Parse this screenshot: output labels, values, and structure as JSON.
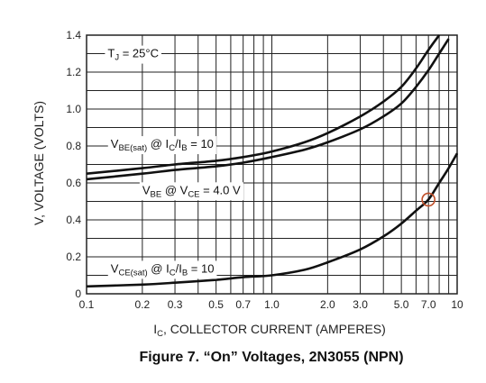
{
  "chart_data": {
    "type": "line",
    "title": "Figure 7. “On” Voltages, 2N3055 (NPN)",
    "xlabel": {
      "main": "I",
      "sub": "C",
      "rest": ", COLLECTOR CURRENT (AMPERES)"
    },
    "ylabel": "V, VOLTAGE (VOLTS)",
    "x_scale": "log",
    "xlim": [
      0.1,
      10
    ],
    "ylim": [
      0,
      1.4
    ],
    "grid": true,
    "x_ticks": [
      {
        "value": 0.1,
        "label": "0.1"
      },
      {
        "value": 0.2,
        "label": "0.2"
      },
      {
        "value": 0.3,
        "label": "0.3"
      },
      {
        "value": 0.5,
        "label": "0.5"
      },
      {
        "value": 0.7,
        "label": "0.7"
      },
      {
        "value": 1.0,
        "label": "1.0"
      },
      {
        "value": 2.0,
        "label": "2.0"
      },
      {
        "value": 3.0,
        "label": "3.0"
      },
      {
        "value": 5.0,
        "label": "5.0"
      },
      {
        "value": 7.0,
        "label": "7.0"
      },
      {
        "value": 10,
        "label": "10"
      }
    ],
    "y_ticks": [
      {
        "value": 0,
        "label": "0"
      },
      {
        "value": 0.2,
        "label": "0.2"
      },
      {
        "value": 0.4,
        "label": "0.4"
      },
      {
        "value": 0.6,
        "label": "0.6"
      },
      {
        "value": 0.8,
        "label": "0.8"
      },
      {
        "value": 1.0,
        "label": "1.0"
      },
      {
        "value": 1.2,
        "label": "1.2"
      },
      {
        "value": 1.4,
        "label": "1.4"
      }
    ],
    "series": [
      {
        "name": "VBE(sat) @ IC/IB = 10",
        "x": [
          0.1,
          0.2,
          0.3,
          0.5,
          0.7,
          1.0,
          1.5,
          2.0,
          3.0,
          4.0,
          5.0,
          6.0,
          7.0,
          8.0
        ],
        "y": [
          0.65,
          0.68,
          0.7,
          0.72,
          0.74,
          0.77,
          0.82,
          0.87,
          0.96,
          1.04,
          1.12,
          1.22,
          1.32,
          1.4
        ]
      },
      {
        "name": "VBE @ VCE = 4.0 V",
        "x": [
          0.1,
          0.2,
          0.3,
          0.5,
          0.7,
          1.0,
          1.5,
          2.0,
          3.0,
          4.0,
          5.0,
          6.0,
          7.0,
          8.0,
          9.0
        ],
        "y": [
          0.62,
          0.65,
          0.67,
          0.69,
          0.71,
          0.74,
          0.78,
          0.82,
          0.89,
          0.96,
          1.03,
          1.12,
          1.21,
          1.3,
          1.38
        ]
      },
      {
        "name": "VCE(sat) @ IC/IB = 10",
        "x": [
          0.1,
          0.2,
          0.3,
          0.5,
          0.7,
          1.0,
          1.5,
          2.0,
          3.0,
          4.0,
          5.0,
          6.0,
          7.0,
          8.0,
          9.0,
          10.0
        ],
        "y": [
          0.04,
          0.05,
          0.06,
          0.075,
          0.09,
          0.1,
          0.13,
          0.17,
          0.24,
          0.31,
          0.38,
          0.45,
          0.51,
          0.6,
          0.68,
          0.76
        ]
      }
    ],
    "annotations": [
      {
        "id": "tj",
        "base": "T",
        "sub": "J",
        "rest": " = 25°C",
        "x": 0.13,
        "y": 1.28
      },
      {
        "id": "vbesat",
        "parts": [
          {
            "t": "V"
          },
          {
            "t": "BE(sat)",
            "sub": true
          },
          {
            "t": " @ I"
          },
          {
            "t": "C",
            "sub": true
          },
          {
            "t": "/I"
          },
          {
            "t": "B",
            "sub": true
          },
          {
            "t": " = 10"
          }
        ],
        "x": 0.135,
        "y": 0.79
      },
      {
        "id": "vbe",
        "parts": [
          {
            "t": "V"
          },
          {
            "t": "BE",
            "sub": true
          },
          {
            "t": " @ V"
          },
          {
            "t": "CE",
            "sub": true
          },
          {
            "t": " = 4.0 V"
          }
        ],
        "x": 0.2,
        "y": 0.54
      },
      {
        "id": "vcesat",
        "parts": [
          {
            "t": "V"
          },
          {
            "t": "CE(sat)",
            "sub": true
          },
          {
            "t": " @ I"
          },
          {
            "t": "C",
            "sub": true
          },
          {
            "t": "/I"
          },
          {
            "t": "B",
            "sub": true
          },
          {
            "t": " = 10"
          }
        ],
        "x": 0.135,
        "y": 0.115
      }
    ],
    "marker": {
      "x": 7.0,
      "y": 0.51,
      "color": "#c0502a"
    },
    "colors": {
      "line": "#111111",
      "grid": "#222222",
      "text": "#222222"
    }
  }
}
